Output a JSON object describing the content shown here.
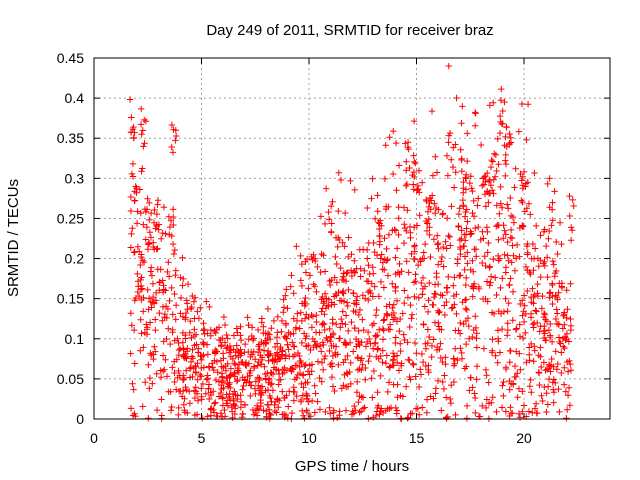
{
  "chart_data": {
    "type": "scatter",
    "title": "Day 249 of 2011, SRMTID for receiver braz",
    "xlabel": "GPS time / hours",
    "ylabel": "SRMTID / TECUs",
    "xlim": [
      0,
      24
    ],
    "ylim": [
      0,
      0.45
    ],
    "x_ticks": [
      0,
      5,
      10,
      15,
      20
    ],
    "x_tick_labels": [
      "0",
      "5",
      "10",
      "15",
      "20"
    ],
    "y_ticks": [
      0,
      0.05,
      0.1,
      0.15,
      0.2,
      0.25,
      0.3,
      0.35,
      0.4,
      0.45
    ],
    "y_tick_labels": [
      "0",
      "0.05",
      "0.1",
      "0.15",
      "0.2",
      "0.25",
      "0.3",
      "0.35",
      "0.4",
      "0.45"
    ],
    "grid": true,
    "marker": "+",
    "color": "#ff0000",
    "trend": [
      {
        "x": 1.7,
        "y": 0.15
      },
      {
        "x": 2.0,
        "y": 0.17
      },
      {
        "x": 2.5,
        "y": 0.15
      },
      {
        "x": 3.0,
        "y": 0.13
      },
      {
        "x": 3.5,
        "y": 0.12
      },
      {
        "x": 4.0,
        "y": 0.1
      },
      {
        "x": 4.5,
        "y": 0.08
      },
      {
        "x": 5.0,
        "y": 0.06
      },
      {
        "x": 6.0,
        "y": 0.055
      },
      {
        "x": 7.0,
        "y": 0.055
      },
      {
        "x": 8.0,
        "y": 0.06
      },
      {
        "x": 9.0,
        "y": 0.08
      },
      {
        "x": 10.0,
        "y": 0.11
      },
      {
        "x": 11.0,
        "y": 0.13
      },
      {
        "x": 12.0,
        "y": 0.12
      },
      {
        "x": 13.0,
        "y": 0.13
      },
      {
        "x": 14.0,
        "y": 0.15
      },
      {
        "x": 14.7,
        "y": 0.18
      },
      {
        "x": 15.0,
        "y": 0.15
      },
      {
        "x": 16.0,
        "y": 0.17
      },
      {
        "x": 17.0,
        "y": 0.19
      },
      {
        "x": 18.0,
        "y": 0.18
      },
      {
        "x": 19.0,
        "y": 0.19
      },
      {
        "x": 20.0,
        "y": 0.17
      },
      {
        "x": 21.0,
        "y": 0.13
      },
      {
        "x": 22.2,
        "y": 0.08
      }
    ],
    "peaks": [
      {
        "x": 1.8,
        "y": 0.4
      },
      {
        "x": 2.3,
        "y": 0.39
      },
      {
        "x": 1.9,
        "y": 0.32
      },
      {
        "x": 3.7,
        "y": 0.38
      },
      {
        "x": 3.6,
        "y": 0.26
      },
      {
        "x": 2.9,
        "y": 0.27
      },
      {
        "x": 14.6,
        "y": 0.35
      },
      {
        "x": 14.9,
        "y": 0.34
      },
      {
        "x": 15.5,
        "y": 0.29
      },
      {
        "x": 17.2,
        "y": 0.33
      },
      {
        "x": 18.2,
        "y": 0.33
      },
      {
        "x": 19.0,
        "y": 0.41
      },
      {
        "x": 19.2,
        "y": 0.37
      },
      {
        "x": 20.0,
        "y": 0.31
      },
      {
        "x": 21.3,
        "y": 0.3
      },
      {
        "x": 22.2,
        "y": 0.28
      },
      {
        "x": 11.0,
        "y": 0.28
      },
      {
        "x": 13.3,
        "y": 0.28
      }
    ]
  }
}
